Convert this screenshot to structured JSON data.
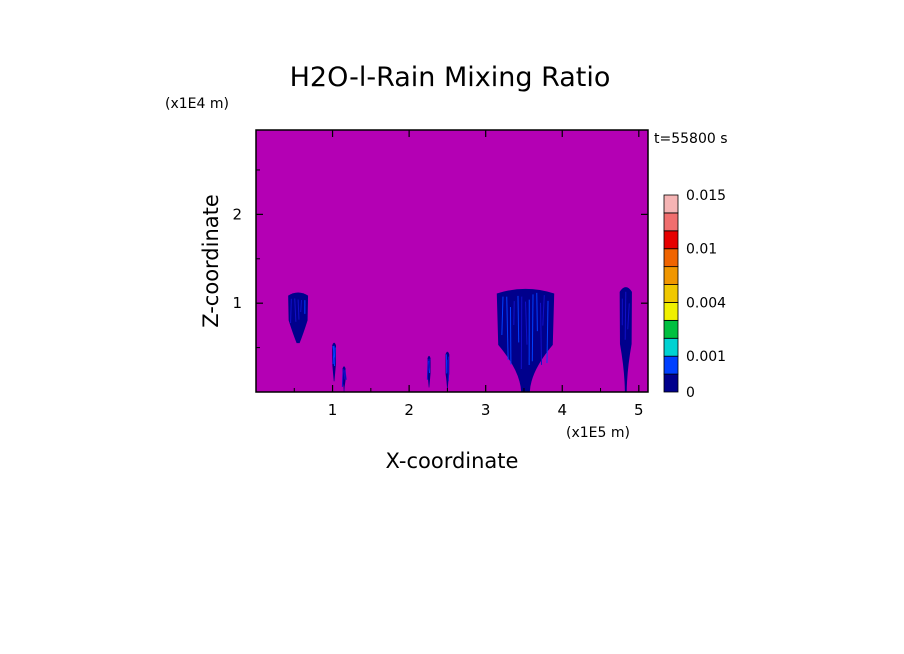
{
  "chart_data": {
    "type": "heatmap",
    "title": "H2O-l-Rain Mixing Ratio",
    "xlabel": "X-coordinate",
    "ylabel": "Z-coordinate",
    "x_scale_label": "(x1E5 m)",
    "y_scale_label": "(x1E4 m)",
    "time_label": "t=55800 s",
    "xlim": [
      0,
      5.12
    ],
    "ylim": [
      0,
      2.95
    ],
    "x_ticks": [
      1,
      2,
      3,
      4,
      5
    ],
    "y_ticks": [
      1,
      2
    ],
    "background_color": "#b400b4",
    "colorbar": {
      "levels": [
        0,
        0.0005,
        0.001,
        0.0015,
        0.002,
        0.004,
        0.006,
        0.008,
        0.01,
        0.012,
        0.014,
        0.015
      ],
      "colors": [
        "#00008c",
        "#0040ff",
        "#00d2d2",
        "#00c040",
        "#f0f000",
        "#f0c800",
        "#f09600",
        "#f06400",
        "#e60000",
        "#f06e6e",
        "#f5b4b4"
      ],
      "tick_labels": [
        "0",
        "0.001",
        "0.004",
        "0.01",
        "0.015"
      ],
      "tick_values": [
        0,
        0.001,
        0.004,
        0.01,
        0.015
      ]
    },
    "rain_regions": [
      {
        "x_center": 0.55,
        "x_width": 0.26,
        "z_bottom": 0.55,
        "z_top": 1.12,
        "max_value": 0.001
      },
      {
        "x_center": 1.02,
        "x_width": 0.05,
        "z_bottom": 0.12,
        "z_top": 0.55,
        "max_value": 0.001
      },
      {
        "x_center": 1.15,
        "x_width": 0.04,
        "z_bottom": 0.0,
        "z_top": 0.28,
        "max_value": 0.001
      },
      {
        "x_center": 2.26,
        "x_width": 0.04,
        "z_bottom": 0.05,
        "z_top": 0.4,
        "max_value": 0.001
      },
      {
        "x_center": 2.5,
        "x_width": 0.05,
        "z_bottom": 0.0,
        "z_top": 0.45,
        "max_value": 0.001
      },
      {
        "x_center": 3.52,
        "x_width": 0.75,
        "z_bottom": 0.0,
        "z_top": 1.18,
        "max_value": 0.001
      },
      {
        "x_center": 4.83,
        "x_width": 0.16,
        "z_bottom": 0.0,
        "z_top": 1.2,
        "max_value": 0.001
      }
    ]
  }
}
